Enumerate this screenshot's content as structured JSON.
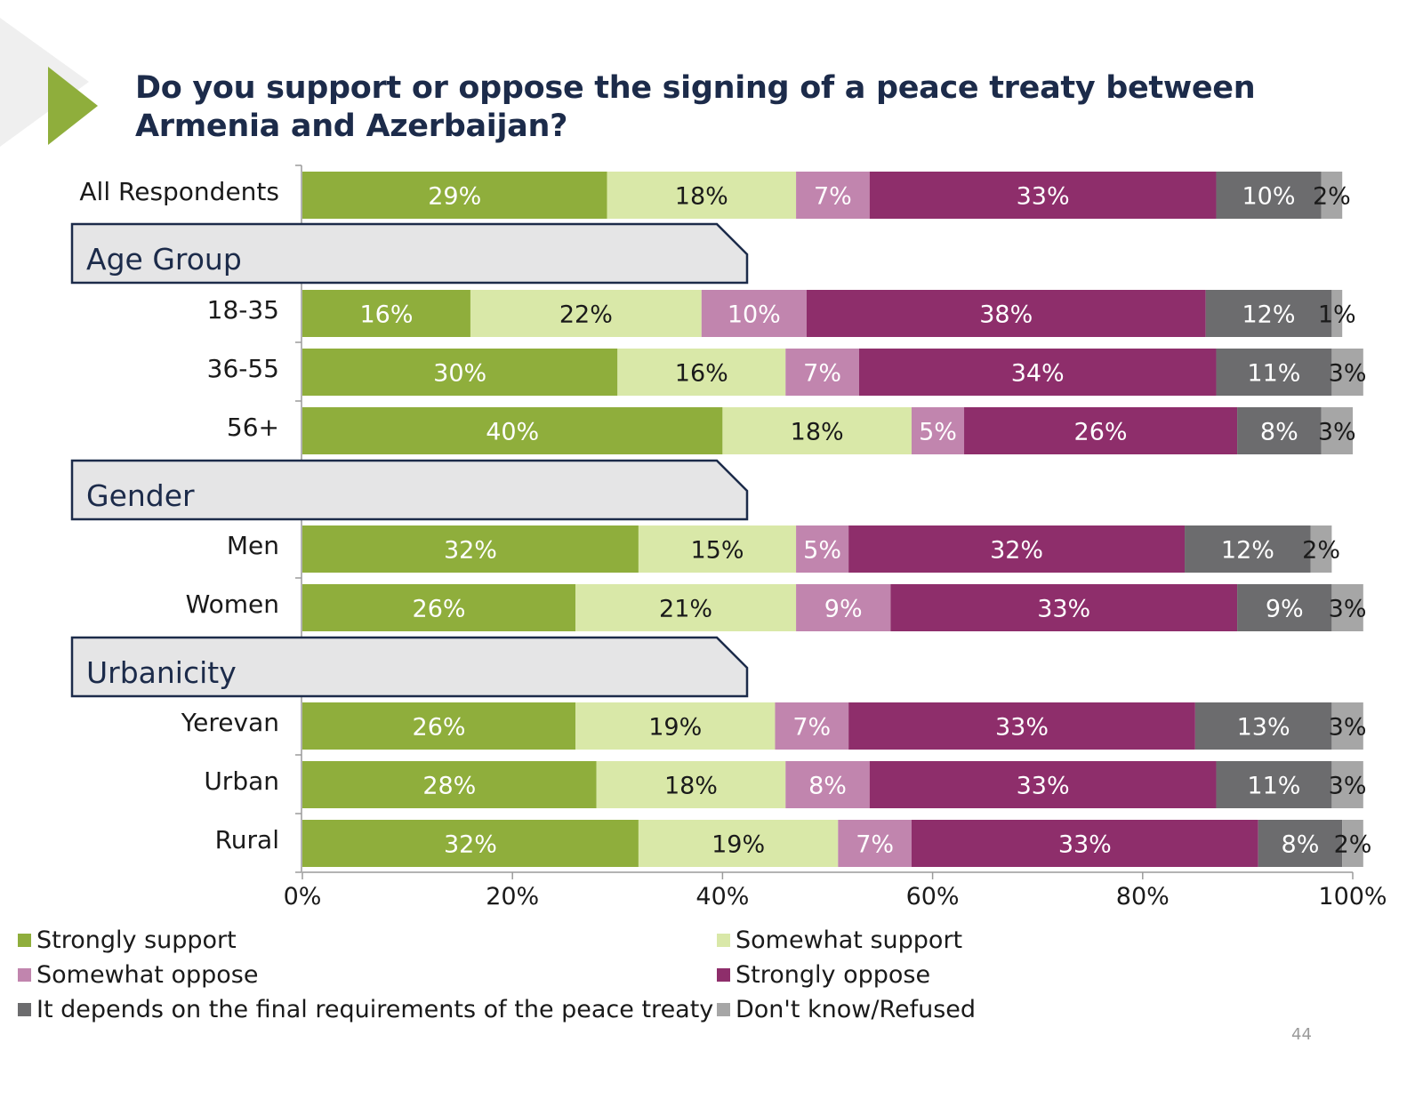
{
  "title": "Do you support or oppose the signing of a peace treaty between Armenia and Azerbaijan?",
  "page_number": "44",
  "colors": {
    "strongly_support": "#8fae3c",
    "somewhat_support": "#d9e8a8",
    "somewhat_oppose": "#c185ae",
    "strongly_oppose": "#8e2e6b",
    "depends": "#6c6c6e",
    "dont_know": "#a6a6a6",
    "accent": "#8fae3c",
    "title": "#1c2b4a"
  },
  "groups": [
    {
      "label": "Age Group"
    },
    {
      "label": "Gender"
    },
    {
      "label": "Urbanicity"
    }
  ],
  "legend": [
    {
      "label": "Strongly support",
      "color": "#8fae3c"
    },
    {
      "label": "Somewhat support",
      "color": "#d9e8a8"
    },
    {
      "label": "Somewhat oppose",
      "color": "#c185ae"
    },
    {
      "label": "Strongly oppose",
      "color": "#8e2e6b"
    },
    {
      "label": "It depends on the final requirements of the peace treaty",
      "color": "#6c6c6e"
    },
    {
      "label": "Don't know/Refused",
      "color": "#a6a6a6"
    }
  ],
  "chart_data": {
    "type": "bar",
    "orientation": "horizontal",
    "stacked": true,
    "title": "Do you support or oppose the signing of a peace treaty between Armenia and Azerbaijan?",
    "xlim": [
      0,
      100
    ],
    "x_ticks": [
      "0%",
      "20%",
      "40%",
      "60%",
      "80%",
      "100%"
    ],
    "categories": [
      "All Respondents",
      "18-35",
      "36-55",
      "56+",
      "Men",
      "Women",
      "Yerevan",
      "Urban",
      "Rural"
    ],
    "series": [
      {
        "name": "Strongly support",
        "values": [
          29,
          16,
          30,
          40,
          32,
          26,
          26,
          28,
          32
        ]
      },
      {
        "name": "Somewhat support",
        "values": [
          18,
          22,
          16,
          18,
          15,
          21,
          19,
          18,
          19
        ]
      },
      {
        "name": "Somewhat oppose",
        "values": [
          7,
          10,
          7,
          5,
          5,
          9,
          7,
          8,
          7
        ]
      },
      {
        "name": "Strongly oppose",
        "values": [
          33,
          38,
          34,
          26,
          32,
          33,
          33,
          33,
          33
        ]
      },
      {
        "name": "It depends on the final requirements of the peace treaty",
        "values": [
          10,
          12,
          11,
          8,
          12,
          9,
          13,
          11,
          8
        ]
      },
      {
        "name": "Don't know/Refused",
        "values": [
          2,
          1,
          3,
          3,
          2,
          3,
          3,
          3,
          2
        ]
      }
    ],
    "data_labels": [
      [
        "29%",
        "18%",
        "7%",
        "33%",
        "10%",
        "2%"
      ],
      [
        "16%",
        "22%",
        "10%",
        "38%",
        "12%",
        "1%"
      ],
      [
        "30%",
        "16%",
        "7%",
        "34%",
        "11%",
        "3%"
      ],
      [
        "40%",
        "18%",
        "5%",
        "26%",
        "8%",
        "3%"
      ],
      [
        "32%",
        "15%",
        "5%",
        "32%",
        "12%",
        "2%"
      ],
      [
        "26%",
        "21%",
        "9%",
        "33%",
        "9%",
        "3%"
      ],
      [
        "26%",
        "19%",
        "7%",
        "33%",
        "13%",
        "3%"
      ],
      [
        "28%",
        "18%",
        "8%",
        "33%",
        "11%",
        "3%"
      ],
      [
        "32%",
        "19%",
        "7%",
        "33%",
        "8%",
        "2%"
      ]
    ],
    "legend_position": "bottom"
  }
}
